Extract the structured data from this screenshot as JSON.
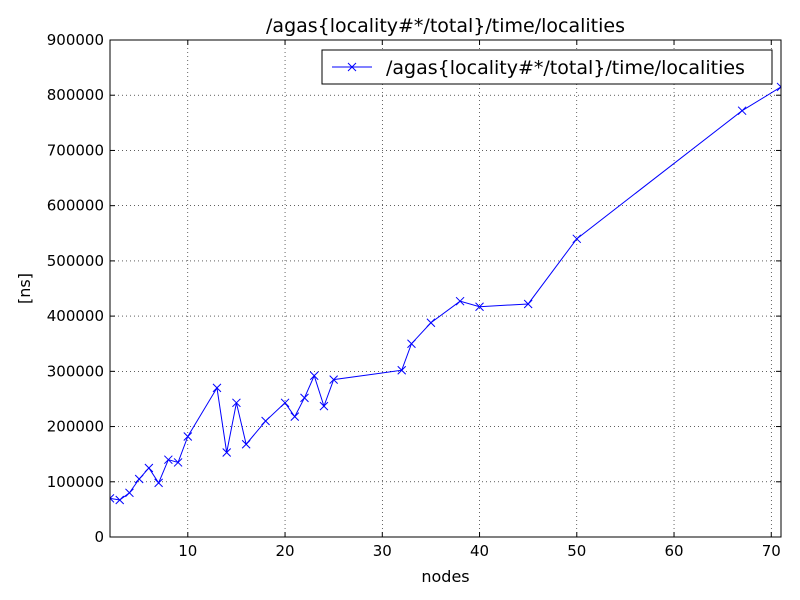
{
  "chart_data": {
    "type": "line",
    "title": "/agas{locality#*/total}/time/localities",
    "xlabel": "nodes",
    "ylabel": "[ns]",
    "xlim": [
      2,
      71
    ],
    "ylim": [
      0,
      900000
    ],
    "xticks": [
      10,
      20,
      30,
      40,
      50,
      60,
      70
    ],
    "yticks": [
      0,
      100000,
      200000,
      300000,
      400000,
      500000,
      600000,
      700000,
      800000,
      900000
    ],
    "grid": true,
    "legend_position": "top-right",
    "series": [
      {
        "name": "/agas{locality#*/total}/time/localities",
        "color": "#0000ff",
        "marker": "x",
        "x": [
          2,
          3,
          4,
          5,
          6,
          7,
          8,
          9,
          10,
          13,
          14,
          15,
          16,
          18,
          20,
          21,
          22,
          23,
          24,
          25,
          32,
          33,
          35,
          38,
          40,
          45,
          50,
          67,
          71
        ],
        "y": [
          70000,
          67000,
          80000,
          105000,
          125000,
          98000,
          140000,
          135000,
          182000,
          270000,
          153000,
          243000,
          168000,
          210000,
          243000,
          218000,
          252000,
          292000,
          237000,
          285000,
          302000,
          350000,
          388000,
          427000,
          417000,
          422000,
          540000,
          772000,
          815000
        ]
      }
    ]
  }
}
